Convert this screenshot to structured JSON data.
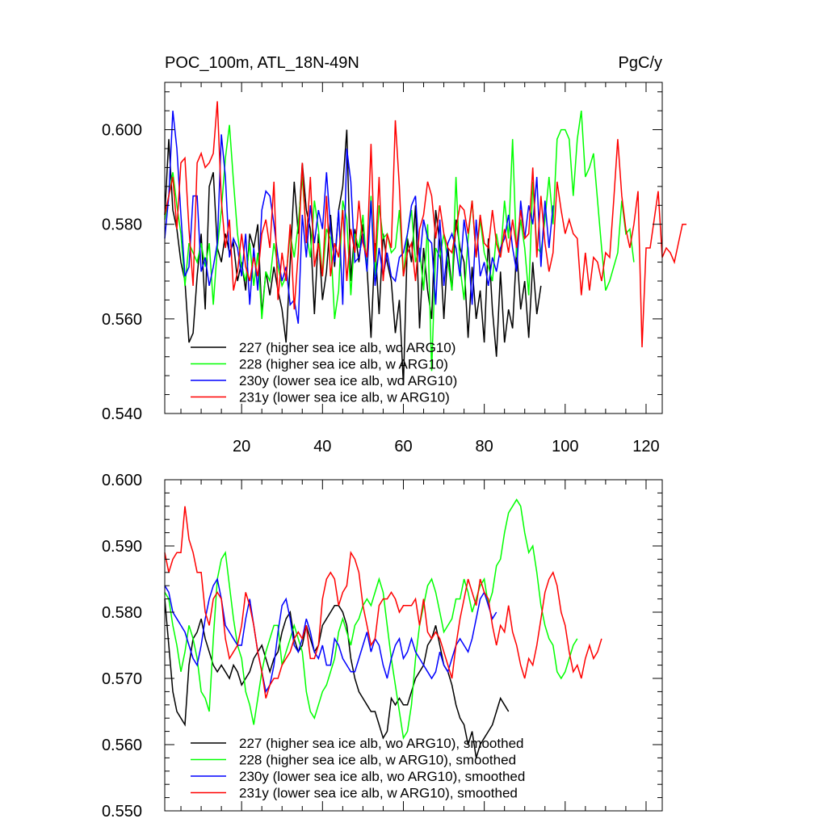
{
  "chart_data": [
    {
      "type": "line",
      "title": "POC_100m, ATL_18N-49N",
      "units": "PgC/y",
      "xlim": [
        1,
        124
      ],
      "ylim": [
        0.54,
        0.61
      ],
      "xticks": [
        20,
        40,
        60,
        80,
        100,
        120
      ],
      "yticks": [
        0.54,
        0.56,
        0.58,
        0.6
      ],
      "ytick_labels": [
        "0.540",
        "0.560",
        "0.580",
        "0.600"
      ],
      "legend_position": "bottom-left",
      "series": [
        {
          "name": "227 (higher sea ice alb, wo ARG10)",
          "color": "#000000",
          "values": [
            0.582,
            0.598,
            0.583,
            0.579,
            0.572,
            0.568,
            0.555,
            0.557,
            0.569,
            0.578,
            0.562,
            0.588,
            0.591,
            0.575,
            0.572,
            0.578,
            0.574,
            0.576,
            0.568,
            0.572,
            0.566,
            0.578,
            0.575,
            0.58,
            0.561,
            0.57,
            0.565,
            0.571,
            0.566,
            0.562,
            0.555,
            0.572,
            0.589,
            0.578,
            0.593,
            0.583,
            0.579,
            0.561,
            0.578,
            0.564,
            0.57,
            0.582,
            0.571,
            0.583,
            0.588,
            0.6,
            0.568,
            0.579,
            0.572,
            0.58,
            0.571,
            0.556,
            0.576,
            0.561,
            0.578,
            0.572,
            0.568,
            0.557,
            0.564,
            0.546,
            0.577,
            0.572,
            0.584,
            0.558,
            0.575,
            0.566,
            0.56,
            0.583,
            0.576,
            0.56,
            0.575,
            0.566,
            0.581,
            0.575,
            0.572,
            0.556,
            0.571,
            0.56,
            0.566,
            0.555,
            0.577,
            0.562,
            0.552,
            0.57,
            0.555,
            0.562,
            0.558,
            0.575,
            0.562,
            0.568,
            0.556,
            0.572,
            0.561,
            0.567
          ]
        },
        {
          "name": "228 (higher sea ice alb, w ARG10)",
          "color": "#00ff00",
          "values": [
            0.581,
            0.586,
            0.591,
            0.584,
            0.578,
            0.567,
            0.576,
            0.574,
            0.572,
            0.576,
            0.571,
            0.576,
            0.563,
            0.575,
            0.583,
            0.594,
            0.601,
            0.589,
            0.578,
            0.571,
            0.568,
            0.576,
            0.567,
            0.574,
            0.56,
            0.57,
            0.568,
            0.576,
            0.571,
            0.567,
            0.569,
            0.578,
            0.573,
            0.58,
            0.59,
            0.578,
            0.573,
            0.585,
            0.579,
            0.569,
            0.579,
            0.577,
            0.56,
            0.566,
            0.585,
            0.581,
            0.565,
            0.578,
            0.575,
            0.582,
            0.57,
            0.586,
            0.569,
            0.584,
            0.577,
            0.578,
            0.574,
            0.575,
            0.583,
            0.569,
            0.578,
            0.583,
            0.572,
            0.575,
            0.566,
            0.58,
            0.549,
            0.575,
            0.573,
            0.578,
            0.572,
            0.566,
            0.59,
            0.571,
            0.564,
            0.577,
            0.585,
            0.573,
            0.581,
            0.574,
            0.571,
            0.568,
            0.578,
            0.573,
            0.585,
            0.577,
            0.598,
            0.573,
            0.581,
            0.575,
            0.565,
            0.589,
            0.575,
            0.574,
            0.581,
            0.59,
            0.58,
            0.598,
            0.6,
            0.6,
            0.598,
            0.586,
            0.598,
            0.604,
            0.59,
            0.592,
            0.595,
            0.585,
            0.575,
            0.566,
            0.568,
            0.571,
            0.574,
            0.585,
            0.578,
            0.579,
            0.572
          ]
        },
        {
          "name": "230y (lower sea ice alb, wo ARG10)",
          "color": "#0000ff",
          "values": [
            0.577,
            0.586,
            0.604,
            0.596,
            0.582,
            0.569,
            0.571,
            0.586,
            0.586,
            0.57,
            0.573,
            0.567,
            0.571,
            0.576,
            0.599,
            0.59,
            0.573,
            0.577,
            0.575,
            0.569,
            0.578,
            0.563,
            0.575,
            0.566,
            0.583,
            0.587,
            0.586,
            0.58,
            0.573,
            0.568,
            0.571,
            0.563,
            0.564,
            0.559,
            0.582,
            0.573,
            0.584,
            0.576,
            0.583,
            0.579,
            0.591,
            0.579,
            0.572,
            0.583,
            0.563,
            0.596,
            0.589,
            0.572,
            0.573,
            0.578,
            0.57,
            0.585,
            0.567,
            0.575,
            0.569,
            0.574,
            0.569,
            0.568,
            0.573,
            0.574,
            0.578,
            0.584,
            0.586,
            0.572,
            0.581,
            0.577,
            0.576,
            0.563,
            0.581,
            0.567,
            0.576,
            0.578,
            0.575,
            0.569,
            0.581,
            0.575,
            0.563,
            0.581,
            0.569,
            0.572,
            0.567,
            0.573,
            0.57,
            0.575,
            0.577,
            0.582,
            0.575,
            0.57,
            0.585,
            0.577,
            0.584,
            0.58,
            0.59,
            0.571,
            0.585,
            0.575,
            0.584
          ]
        },
        {
          "name": "231y (lower sea ice alb, w ARG10)",
          "color": "#ff0000",
          "values": [
            0.582,
            0.586,
            0.59,
            0.579,
            0.593,
            0.594,
            0.579,
            0.567,
            0.593,
            0.595,
            0.592,
            0.593,
            0.595,
            0.606,
            0.585,
            0.575,
            0.581,
            0.566,
            0.57,
            0.578,
            0.571,
            0.568,
            0.573,
            0.569,
            0.578,
            0.581,
            0.575,
            0.589,
            0.564,
            0.574,
            0.568,
            0.58,
            0.562,
            0.574,
            0.593,
            0.576,
            0.59,
            0.571,
            0.576,
            0.569,
            0.586,
            0.569,
            0.576,
            0.573,
            0.583,
            0.568,
            0.579,
            0.574,
            0.585,
            0.576,
            0.573,
            0.597,
            0.572,
            0.59,
            0.568,
            0.578,
            0.575,
            0.602,
            0.588,
            0.569,
            0.574,
            0.576,
            0.568,
            0.579,
            0.582,
            0.589,
            0.586,
            0.577,
            0.584,
            0.578,
            0.575,
            0.574,
            0.579,
            0.584,
            0.583,
            0.578,
            0.585,
            0.573,
            0.582,
            0.576,
            0.575,
            0.583,
            0.576,
            0.573,
            0.579,
            0.574,
            0.581,
            0.575,
            0.583,
            0.577,
            0.578,
            0.592,
            0.573,
            0.586,
            0.576,
            0.57,
            0.574,
            0.589,
            0.583,
            0.578,
            0.581,
            0.578,
            0.577,
            0.565,
            0.574,
            0.566,
            0.573,
            0.572,
            0.568,
            0.574,
            0.573,
            0.585,
            0.598,
            0.586,
            0.579,
            0.575,
            0.58,
            0.587,
            0.554,
            0.575,
            0.575,
            0.581,
            0.587,
            0.573,
            0.575,
            0.574,
            0.572,
            0.576,
            0.58,
            0.58
          ]
        }
      ]
    },
    {
      "type": "line",
      "title": "",
      "xlim": [
        1,
        124
      ],
      "ylim": [
        0.55,
        0.6
      ],
      "xticks": [
        20,
        40,
        60,
        80,
        100,
        120
      ],
      "yticks": [
        0.55,
        0.56,
        0.57,
        0.58,
        0.59,
        0.6
      ],
      "ytick_labels": [
        "0.550",
        "0.560",
        "0.570",
        "0.580",
        "0.590",
        "0.600"
      ],
      "legend_position": "bottom-left",
      "series": [
        {
          "name": "227 (higher sea ice alb, wo ARG10), smoothed",
          "color": "#000000",
          "values": [
            0.582,
            0.575,
            0.568,
            0.565,
            0.564,
            0.563,
            0.572,
            0.576,
            0.577,
            0.579,
            0.576,
            0.574,
            0.572,
            0.571,
            0.572,
            0.571,
            0.57,
            0.572,
            0.571,
            0.569,
            0.57,
            0.571,
            0.573,
            0.574,
            0.575,
            0.573,
            0.571,
            0.573,
            0.574,
            0.577,
            0.579,
            0.58,
            0.576,
            0.574,
            0.575,
            0.578,
            0.576,
            0.574,
            0.575,
            0.578,
            0.579,
            0.58,
            0.581,
            0.581,
            0.58,
            0.578,
            0.573,
            0.57,
            0.568,
            0.567,
            0.566,
            0.565,
            0.565,
            0.563,
            0.561,
            0.562,
            0.567,
            0.566,
            0.567,
            0.566,
            0.566,
            0.568,
            0.57,
            0.571,
            0.572,
            0.575,
            0.576,
            0.578,
            0.575,
            0.572,
            0.571,
            0.569,
            0.566,
            0.564,
            0.563,
            0.56,
            0.562,
            0.558,
            0.56,
            0.561,
            0.562,
            0.563,
            0.565,
            0.567,
            0.566,
            0.565
          ]
        },
        {
          "name": "228 (higher sea ice alb, w ARG10), smoothed",
          "color": "#00ff00",
          "values": [
            0.583,
            0.582,
            0.578,
            0.575,
            0.571,
            0.574,
            0.578,
            0.576,
            0.573,
            0.568,
            0.567,
            0.565,
            0.576,
            0.585,
            0.588,
            0.589,
            0.584,
            0.579,
            0.575,
            0.573,
            0.568,
            0.566,
            0.563,
            0.567,
            0.571,
            0.574,
            0.576,
            0.578,
            0.578,
            0.572,
            0.574,
            0.576,
            0.578,
            0.576,
            0.574,
            0.568,
            0.565,
            0.564,
            0.566,
            0.568,
            0.569,
            0.571,
            0.573,
            0.577,
            0.579,
            0.577,
            0.575,
            0.578,
            0.579,
            0.581,
            0.582,
            0.581,
            0.583,
            0.585,
            0.583,
            0.578,
            0.573,
            0.569,
            0.565,
            0.561,
            0.562,
            0.566,
            0.573,
            0.578,
            0.581,
            0.584,
            0.585,
            0.583,
            0.58,
            0.577,
            0.578,
            0.579,
            0.582,
            0.582,
            0.585,
            0.583,
            0.58,
            0.582,
            0.584,
            0.585,
            0.581,
            0.583,
            0.587,
            0.588,
            0.592,
            0.595,
            0.596,
            0.597,
            0.596,
            0.592,
            0.589,
            0.59,
            0.586,
            0.581,
            0.578,
            0.576,
            0.575,
            0.571,
            0.57,
            0.571,
            0.573,
            0.575,
            0.576
          ]
        },
        {
          "name": "230y (lower sea ice alb, wo ARG10), smoothed",
          "color": "#0000ff",
          "values": [
            0.584,
            0.583,
            0.58,
            0.579,
            0.578,
            0.577,
            0.575,
            0.573,
            0.572,
            0.575,
            0.579,
            0.582,
            0.584,
            0.585,
            0.582,
            0.578,
            0.577,
            0.576,
            0.575,
            0.575,
            0.579,
            0.582,
            0.578,
            0.574,
            0.571,
            0.568,
            0.569,
            0.572,
            0.577,
            0.581,
            0.582,
            0.579,
            0.575,
            0.574,
            0.576,
            0.579,
            0.577,
            0.574,
            0.573,
            0.575,
            0.572,
            0.572,
            0.576,
            0.575,
            0.573,
            0.572,
            0.571,
            0.571,
            0.573,
            0.575,
            0.577,
            0.574,
            0.576,
            0.575,
            0.572,
            0.57,
            0.573,
            0.575,
            0.576,
            0.573,
            0.574,
            0.576,
            0.574,
            0.573,
            0.572,
            0.571,
            0.57,
            0.571,
            0.574,
            0.572,
            0.571,
            0.573,
            0.575,
            0.576,
            0.575,
            0.574,
            0.576,
            0.579,
            0.582,
            0.583,
            0.581,
            0.579,
            0.58
          ]
        },
        {
          "name": "231y (lower sea ice alb, w ARG10), smoothed",
          "color": "#ff0000",
          "values": [
            0.589,
            0.586,
            0.588,
            0.589,
            0.589,
            0.596,
            0.591,
            0.589,
            0.586,
            0.586,
            0.58,
            0.578,
            0.582,
            0.583,
            0.582,
            0.576,
            0.573,
            0.574,
            0.575,
            0.578,
            0.583,
            0.581,
            0.578,
            0.574,
            0.571,
            0.567,
            0.569,
            0.57,
            0.57,
            0.572,
            0.573,
            0.574,
            0.576,
            0.577,
            0.576,
            0.578,
            0.573,
            0.573,
            0.575,
            0.582,
            0.585,
            0.586,
            0.585,
            0.581,
            0.583,
            0.584,
            0.589,
            0.588,
            0.586,
            0.581,
            0.578,
            0.575,
            0.576,
            0.581,
            0.582,
            0.582,
            0.583,
            0.582,
            0.58,
            0.581,
            0.581,
            0.581,
            0.582,
            0.578,
            0.582,
            0.577,
            0.576,
            0.577,
            0.576,
            0.574,
            0.572,
            0.57,
            0.575,
            0.579,
            0.582,
            0.585,
            0.583,
            0.581,
            0.585,
            0.583,
            0.582,
            0.578,
            0.575,
            0.578,
            0.577,
            0.581,
            0.577,
            0.575,
            0.572,
            0.57,
            0.573,
            0.572,
            0.575,
            0.579,
            0.583,
            0.585,
            0.586,
            0.584,
            0.58,
            0.578,
            0.574,
            0.571,
            0.572,
            0.57,
            0.573,
            0.575,
            0.573,
            0.574,
            0.576
          ]
        }
      ]
    }
  ]
}
